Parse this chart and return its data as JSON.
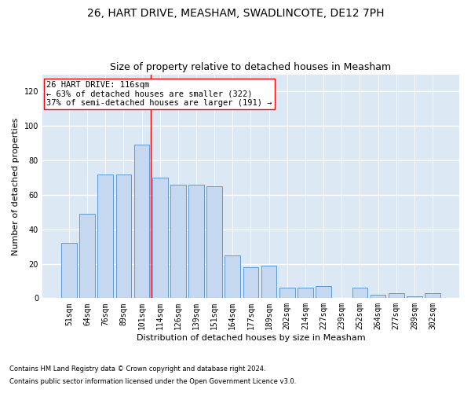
{
  "title": "26, HART DRIVE, MEASHAM, SWADLINCOTE, DE12 7PH",
  "subtitle": "Size of property relative to detached houses in Measham",
  "xlabel": "Distribution of detached houses by size in Measham",
  "ylabel": "Number of detached properties",
  "categories": [
    "51sqm",
    "64sqm",
    "76sqm",
    "89sqm",
    "101sqm",
    "114sqm",
    "126sqm",
    "139sqm",
    "151sqm",
    "164sqm",
    "177sqm",
    "189sqm",
    "202sqm",
    "214sqm",
    "227sqm",
    "239sqm",
    "252sqm",
    "264sqm",
    "277sqm",
    "289sqm",
    "302sqm"
  ],
  "bar_values": [
    32,
    49,
    72,
    72,
    89,
    70,
    66,
    66,
    65,
    25,
    18,
    19,
    6,
    6,
    7,
    0,
    6,
    2,
    3,
    1,
    3
  ],
  "bar_color": "#c5d8f0",
  "bar_edge_color": "#5b9bd5",
  "vline_pos": 4.5,
  "vline_color": "red",
  "annotation_text": "26 HART DRIVE: 116sqm\n← 63% of detached houses are smaller (322)\n37% of semi-detached houses are larger (191) →",
  "ylim": [
    0,
    130
  ],
  "yticks": [
    0,
    20,
    40,
    60,
    80,
    100,
    120
  ],
  "background_color": "#dde8f5",
  "grid_color": "#ffffff",
  "footer_line1": "Contains HM Land Registry data © Crown copyright and database right 2024.",
  "footer_line2": "Contains public sector information licensed under the Open Government Licence v3.0.",
  "title_fontsize": 10,
  "subtitle_fontsize": 9,
  "axis_label_fontsize": 8,
  "tick_fontsize": 7,
  "annotation_fontsize": 7.5
}
